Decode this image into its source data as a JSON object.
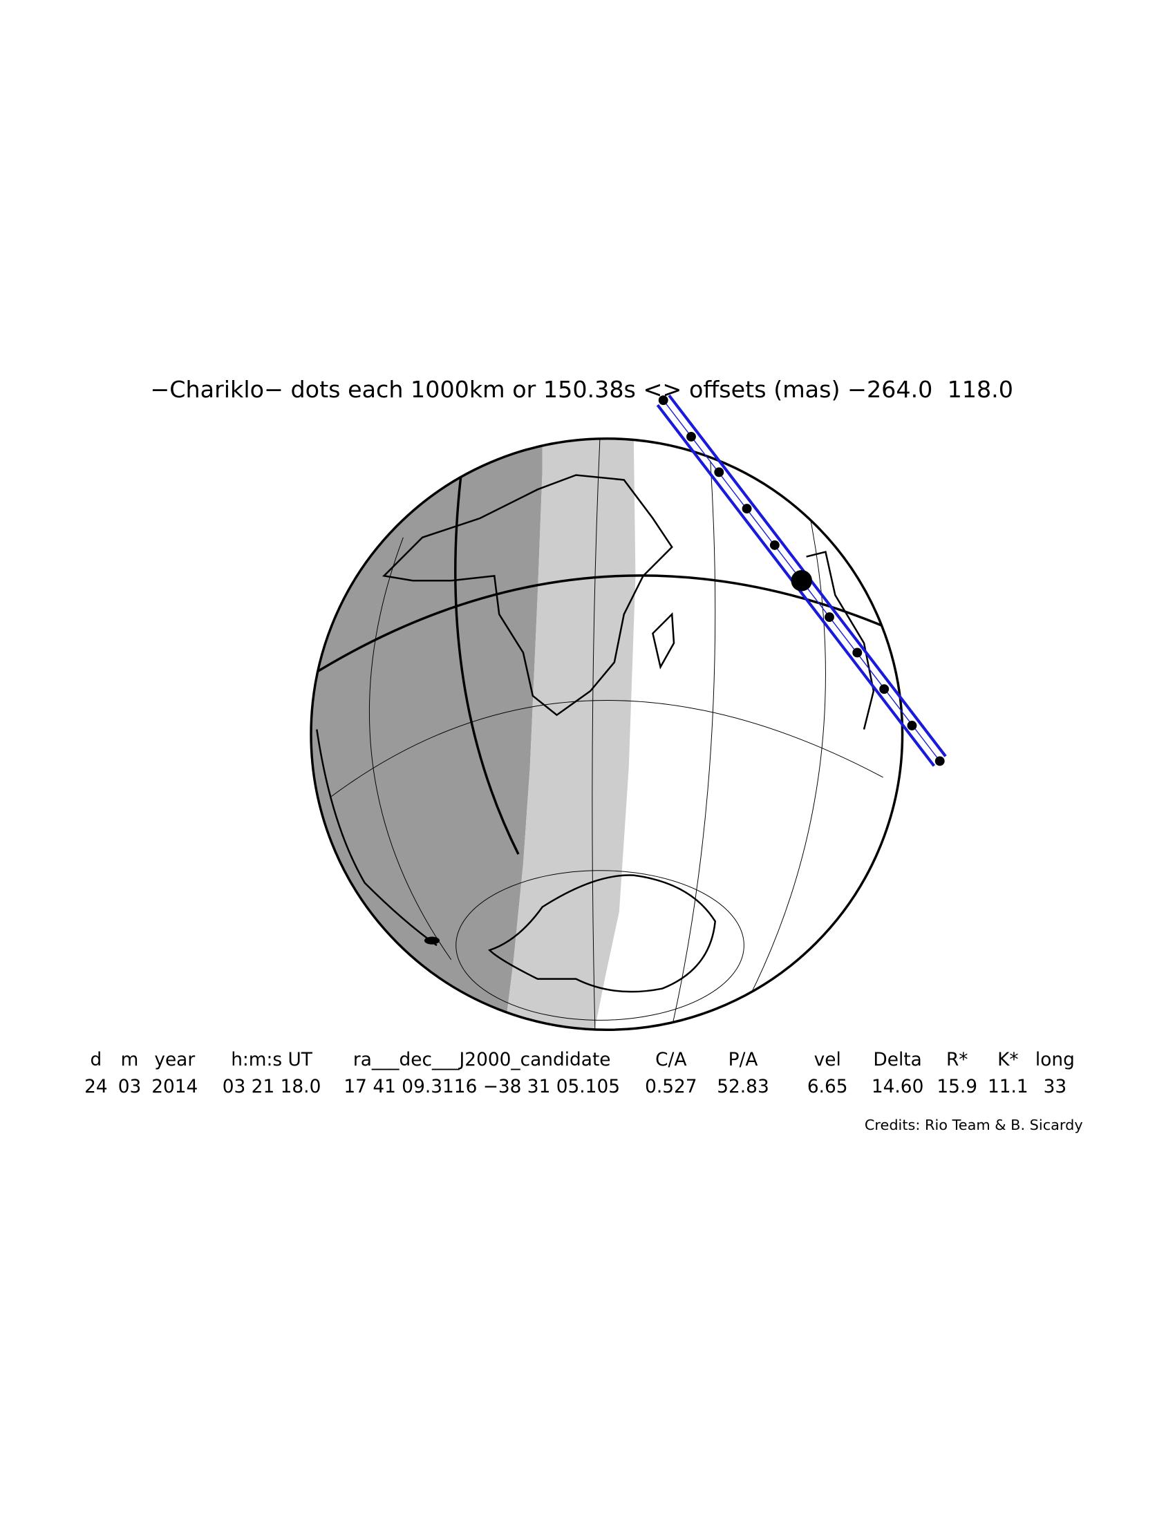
{
  "title": "−Chariklo− dots each 1000km or 150.38s <> offsets (mas) −264.0  118.0",
  "table": {
    "header": [
      "d",
      "m",
      "year",
      "h:m:s UT",
      "ra___dec___J2000_candidate",
      "C/A",
      "P/A",
      "vel",
      "Delta",
      "R*",
      "K*",
      "long"
    ],
    "row": [
      "24",
      "03",
      "2014",
      "03 21 18.0",
      "17 41 09.3116 −38 31 05.105",
      "0.527",
      "52.83",
      "6.65",
      "14.60",
      "15.9",
      "11.1",
      "33"
    ]
  },
  "credits": "Credits: Rio Team & B. Sicardy"
}
